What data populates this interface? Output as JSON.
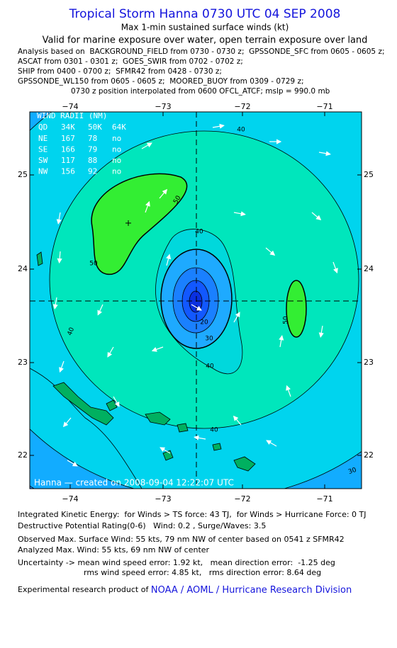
{
  "header": {
    "title": "Tropical Storm Hanna 0730 UTC 04 SEP 2008",
    "subtitle": "Max 1-min sustained surface winds (kt)",
    "valid": "Valid for marine exposure over water, open terrain exposure over land",
    "analysis_lines": [
      "Analysis based on  BACKGROUND_FIELD from 0730 - 0730 z;  GPSSONDE_SFC from 0605 - 0605 z;",
      "ASCAT from 0301 - 0301 z;  GOES_SWIR from 0702 - 0702 z;",
      "SHIP from 0400 - 0700 z;  SFMR42 from 0428 - 0730 z;",
      "GPSSONDE_WL150 from 0605 - 0605 z;  MOORED_BUOY from 0309 - 0729 z;",
      "0730 z position interpolated from 0600 OFCL_ATCF; mslp = 990.0 mb"
    ]
  },
  "map": {
    "lon_labels": [
      "−74",
      "−73",
      "−72",
      "−71"
    ],
    "lat_labels": [
      "25",
      "24",
      "23",
      "22"
    ],
    "wind_radii": {
      "title": "WIND RADII (NM)",
      "columns": [
        "QD",
        "34K",
        "50K",
        "64K"
      ],
      "rows": [
        [
          "NE",
          "167",
          "78",
          "no"
        ],
        [
          "SE",
          "166",
          "79",
          "no"
        ],
        [
          "SW",
          "117",
          "88",
          "no"
        ],
        [
          "NW",
          "156",
          "92",
          "no"
        ]
      ]
    },
    "contour_labels": [
      "40",
      "50",
      "50",
      "40",
      "40",
      "20",
      "30",
      "40",
      "50",
      "40",
      "30"
    ],
    "credit": "Hanna — created on 2008-09-04 12:22:07 UTC"
  },
  "footer": {
    "lines": [
      "Integrated Kinetic Energy:  for Winds > TS force: 43 TJ,  for Winds > Hurricane Force: 0 TJ",
      "Destructive Potential Rating(0-6)   Wind: 0.2 , Surge/Waves: 3.5",
      "Observed Max. Surface Wind: 55 kts, 79 nm NW of center based on 0541 z SFMR42",
      "Analyzed Max. Wind: 55 kts, 69 nm NW of center",
      "Uncertainty -> mean wind speed error: 1.92 kt,   mean direction error:  -1.25 deg",
      "rms wind speed error: 4.85 kt,   rms direction error: 8.64 deg"
    ],
    "product_prefix": "Experimental research product of ",
    "product_org": "NOAA / AOML / Hurricane Research Division"
  }
}
